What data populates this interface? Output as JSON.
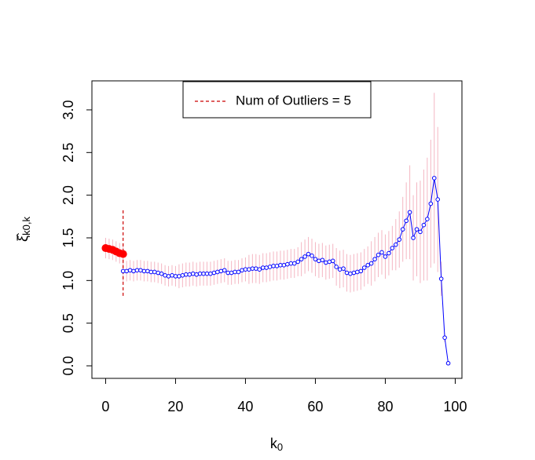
{
  "chart_data": {
    "type": "line",
    "xlabel": {
      "base": "k",
      "sub": "0"
    },
    "ylabel": {
      "base": "ξ̂",
      "sub": "k0,k"
    },
    "xlim": [
      -3.92,
      101.92
    ],
    "ylim": [
      -0.147,
      3.34
    ],
    "xticks": [
      0,
      20,
      40,
      60,
      80,
      100
    ],
    "yticks": [
      {
        "value": 0,
        "label": "0.0"
      },
      0.5,
      {
        "value": 1,
        "label": "1.0"
      },
      1.5,
      {
        "value": 2,
        "label": "2.0"
      },
      2.5,
      {
        "value": 3,
        "label": "3.0"
      }
    ],
    "error_color": "#f4b6c2",
    "series": [
      {
        "color": "#ff0000",
        "marker": "filled",
        "x": [
          0,
          1,
          2,
          3,
          4,
          5
        ],
        "values": [
          1.38,
          1.37,
          1.36,
          1.34,
          1.32,
          1.31
        ],
        "errors": [
          0.12,
          0.12,
          0.12,
          0.12,
          0.12,
          0.12
        ]
      },
      {
        "color": "#0000ff",
        "marker": "open",
        "x": [
          5,
          6,
          7,
          8,
          9,
          10,
          11,
          12,
          13,
          14,
          15,
          16,
          17,
          18,
          19,
          20,
          21,
          22,
          23,
          24,
          25,
          26,
          27,
          28,
          29,
          30,
          31,
          32,
          33,
          34,
          35,
          36,
          37,
          38,
          39,
          40,
          41,
          42,
          43,
          44,
          45,
          46,
          47,
          48,
          49,
          50,
          51,
          52,
          53,
          54,
          55,
          56,
          57,
          58,
          59,
          60,
          61,
          62,
          63,
          64,
          65,
          66,
          67,
          68,
          69,
          70,
          71,
          72,
          73,
          74,
          75,
          76,
          77,
          78,
          79,
          80,
          81,
          82,
          83,
          84,
          85,
          86,
          87,
          88,
          89,
          90,
          91,
          92,
          93,
          94,
          95,
          96,
          97,
          98
        ],
        "values": [
          1.11,
          1.11,
          1.12,
          1.11,
          1.12,
          1.12,
          1.11,
          1.11,
          1.1,
          1.1,
          1.09,
          1.08,
          1.06,
          1.05,
          1.06,
          1.05,
          1.05,
          1.06,
          1.07,
          1.07,
          1.08,
          1.07,
          1.08,
          1.08,
          1.08,
          1.08,
          1.09,
          1.1,
          1.11,
          1.12,
          1.09,
          1.09,
          1.1,
          1.1,
          1.12,
          1.13,
          1.13,
          1.14,
          1.14,
          1.13,
          1.15,
          1.15,
          1.16,
          1.17,
          1.17,
          1.18,
          1.18,
          1.19,
          1.2,
          1.2,
          1.22,
          1.25,
          1.28,
          1.31,
          1.29,
          1.25,
          1.23,
          1.24,
          1.21,
          1.22,
          1.23,
          1.16,
          1.13,
          1.14,
          1.09,
          1.08,
          1.09,
          1.1,
          1.11,
          1.15,
          1.18,
          1.2,
          1.25,
          1.3,
          1.33,
          1.28,
          1.32,
          1.38,
          1.42,
          1.48,
          1.6,
          1.7,
          1.8,
          1.5,
          1.6,
          1.57,
          1.65,
          1.72,
          1.9,
          2.2,
          1.95,
          1.02,
          0.33,
          0.03
        ],
        "errors": [
          0.12,
          0.12,
          0.12,
          0.12,
          0.12,
          0.12,
          0.12,
          0.12,
          0.12,
          0.12,
          0.12,
          0.12,
          0.12,
          0.12,
          0.12,
          0.12,
          0.14,
          0.14,
          0.14,
          0.14,
          0.14,
          0.14,
          0.14,
          0.14,
          0.14,
          0.14,
          0.14,
          0.14,
          0.14,
          0.14,
          0.14,
          0.14,
          0.14,
          0.14,
          0.14,
          0.14,
          0.17,
          0.17,
          0.17,
          0.17,
          0.17,
          0.17,
          0.17,
          0.17,
          0.17,
          0.17,
          0.17,
          0.17,
          0.17,
          0.17,
          0.17,
          0.2,
          0.2,
          0.2,
          0.2,
          0.2,
          0.2,
          0.2,
          0.2,
          0.2,
          0.2,
          0.22,
          0.22,
          0.22,
          0.22,
          0.22,
          0.22,
          0.22,
          0.22,
          0.22,
          0.22,
          0.26,
          0.26,
          0.26,
          0.26,
          0.26,
          0.26,
          0.26,
          0.3,
          0.33,
          0.38,
          0.45,
          0.55,
          0.5,
          0.55,
          0.6,
          0.65,
          0.72,
          0.75,
          1.0,
          0.85,
          0.2,
          0.05,
          0.02
        ]
      }
    ],
    "outlier_line": {
      "x": 5,
      "y": [
        0.82,
        1.84
      ],
      "color": "#cc0000"
    },
    "legend": {
      "label": "Num of Outliers = 5",
      "position": "top"
    }
  }
}
